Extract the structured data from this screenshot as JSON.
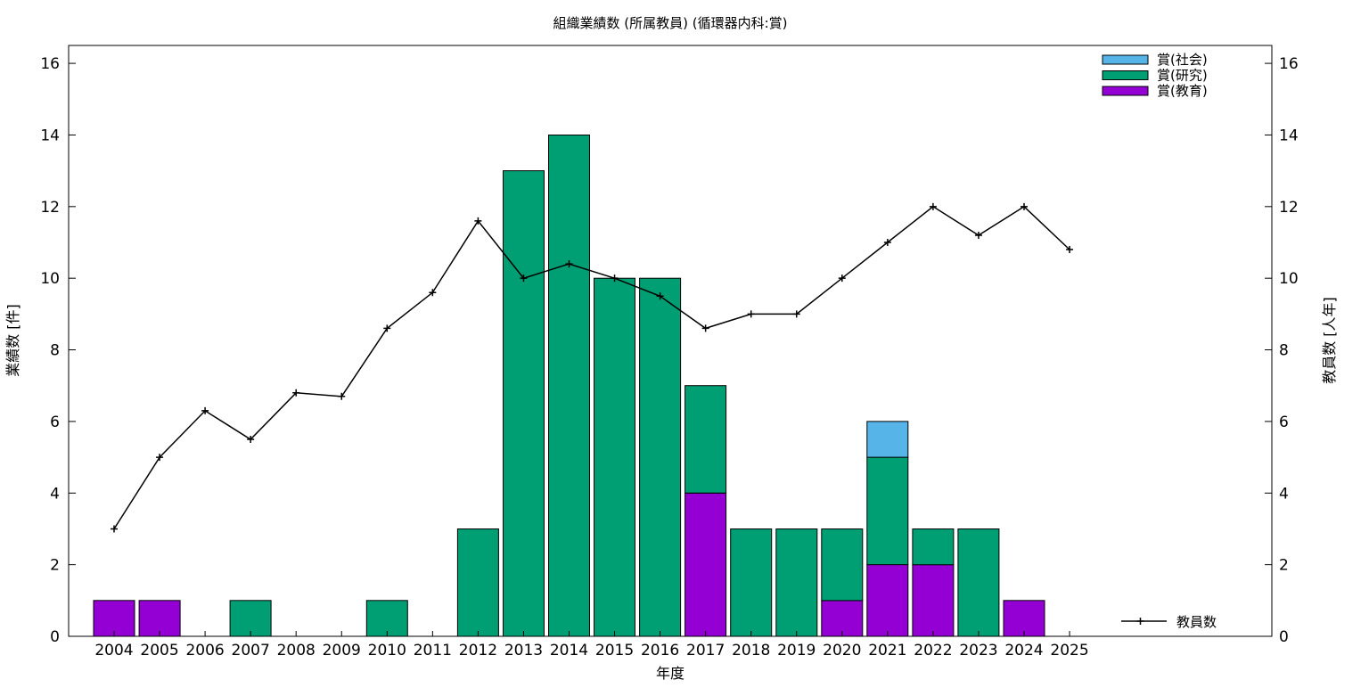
{
  "chart_data": {
    "type": "bar",
    "title": "組織業績数 (所属教員) (循環器内科:賞)",
    "xlabel": "年度",
    "ylabel": "業績数 [件]",
    "y2label": "教員数 [人年]",
    "ylim": [
      0,
      16.5
    ],
    "y2lim": [
      0,
      16.5
    ],
    "yticks": [
      "0",
      "2",
      "4",
      "6",
      "8",
      "10",
      "12",
      "14",
      "16"
    ],
    "y2ticks": [
      "0",
      "2",
      "4",
      "6",
      "8",
      "10",
      "12",
      "14",
      "16"
    ],
    "grid": false,
    "legend_placement": "top-right",
    "categories": [
      "2004",
      "2005",
      "2006",
      "2007",
      "2008",
      "2009",
      "2010",
      "2011",
      "2012",
      "2013",
      "2014",
      "2015",
      "2016",
      "2017",
      "2018",
      "2019",
      "2020",
      "2021",
      "2022",
      "2023",
      "2024",
      "2025"
    ],
    "stacked": true,
    "series": [
      {
        "name": "賞(教育)",
        "color": "#9400d3",
        "values": [
          1,
          1,
          0,
          0,
          0,
          0,
          0,
          0,
          0,
          0,
          0,
          0,
          0,
          4,
          0,
          0,
          1,
          2,
          2,
          0,
          1,
          0
        ]
      },
      {
        "name": "賞(研究)",
        "color": "#009e73",
        "values": [
          0,
          0,
          0,
          1,
          0,
          0,
          1,
          0,
          3,
          13,
          14,
          10,
          10,
          3,
          3,
          3,
          2,
          3,
          1,
          3,
          0,
          0
        ]
      },
      {
        "name": "賞(社会)",
        "color": "#56b4e9",
        "values": [
          0,
          0,
          0,
          0,
          0,
          0,
          0,
          0,
          0,
          0,
          0,
          0,
          0,
          0,
          0,
          0,
          0,
          1,
          0,
          0,
          0,
          0
        ]
      }
    ],
    "line_series": {
      "name": "教員数",
      "axis": "right",
      "color": "#000000",
      "values": [
        3.0,
        5.0,
        6.3,
        5.5,
        6.8,
        6.7,
        8.6,
        9.6,
        11.6,
        10.0,
        10.4,
        10.0,
        9.5,
        8.6,
        9.0,
        9.0,
        10.0,
        11.0,
        12.0,
        11.2,
        12.0,
        10.8
      ]
    }
  }
}
